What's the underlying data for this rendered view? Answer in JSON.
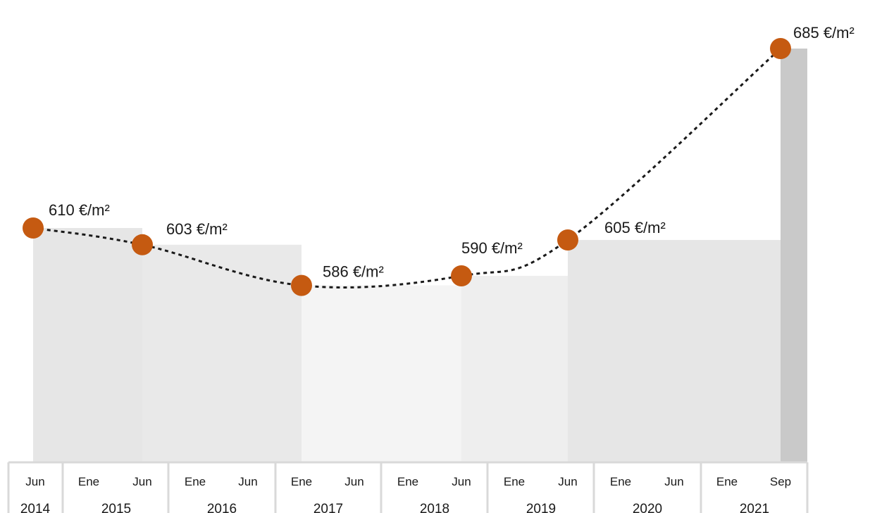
{
  "chart_data": {
    "type": "area",
    "points": [
      {
        "period": "Jun 2014",
        "value": 610,
        "label": "610 €/m²"
      },
      {
        "period": "Jun 2015",
        "value": 603,
        "label": "603 €/m²"
      },
      {
        "period": "Ene 2017",
        "value": 586,
        "label": "586 €/m²"
      },
      {
        "period": "Jun 2018",
        "value": 590,
        "label": "590 €/m²"
      },
      {
        "period": "Jun 2019",
        "value": 605,
        "label": "605 €/m²"
      },
      {
        "period": "Sep 2021",
        "value": 685,
        "label": "685 €/m²"
      }
    ],
    "month_ticks": [
      "Jun",
      "Ene",
      "Jun",
      "Ene",
      "Jun",
      "Ene",
      "Jun",
      "Ene",
      "Jun",
      "Ene",
      "Jun",
      "Ene",
      "Jun",
      "Ene",
      "Sep"
    ],
    "year_labels": [
      "2014",
      "2015",
      "2016",
      "2017",
      "2018",
      "2019",
      "2020",
      "2021"
    ],
    "colors": {
      "marker": "#c55a11",
      "line": "#1a1a1a",
      "bands": [
        "#e6e6e6",
        "#e9e9e9",
        "#f4f4f4",
        "#eeeeee",
        "#e6e6e6",
        "#c9c9c9"
      ],
      "axis_border": "#d9d9d9"
    }
  }
}
